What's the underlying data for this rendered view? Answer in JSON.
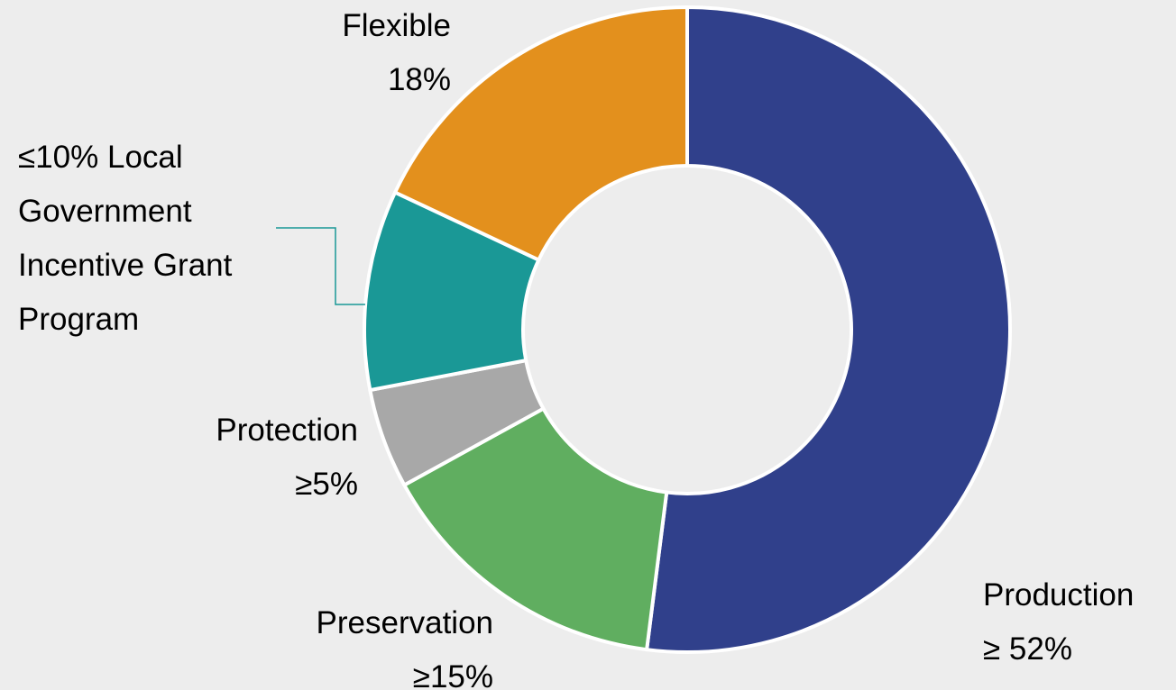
{
  "chart_data": {
    "type": "pie",
    "donut": true,
    "background": "#ededed",
    "slice_border_color": "#ffffff",
    "leader_line_color": "#1a9896",
    "slices": [
      {
        "name": "Production",
        "value": 52,
        "color": "#30408b",
        "label_lines": [
          "Production",
          "≥ 52%"
        ]
      },
      {
        "name": "Preservation",
        "value": 15,
        "color": "#60ae60",
        "label_lines": [
          "Preservation",
          "≥15%"
        ]
      },
      {
        "name": "Protection",
        "value": 5,
        "color": "#a8a8a8",
        "label_lines": [
          "Protection",
          "≥5%"
        ]
      },
      {
        "name": "Local Government Incentive Grant Program",
        "value": 10,
        "color": "#1a9896",
        "label_lines": [
          "≤10% Local",
          "Government",
          "Incentive Grant",
          "Program"
        ]
      },
      {
        "name": "Flexible",
        "value": 18,
        "color": "#e3901d",
        "label_lines": [
          "Flexible",
          "18%"
        ]
      }
    ]
  }
}
